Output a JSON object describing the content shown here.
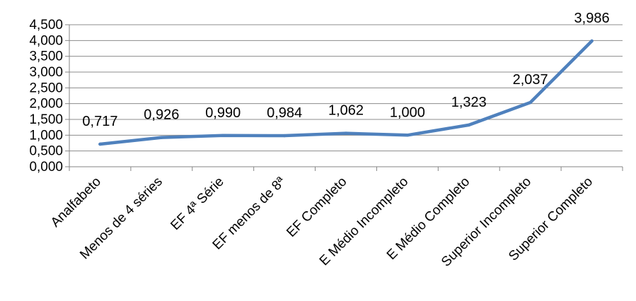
{
  "chart_data": {
    "type": "line",
    "title": "",
    "xlabel": "",
    "ylabel": "",
    "categories": [
      "Analfabeto",
      "Menos de 4 séries",
      "EF 4ª Série",
      "EF menos de 8ª",
      "EF Completo",
      "E Médio Incompleto",
      "E Médio Completo",
      "Superior Incompleto",
      "Superior Completo"
    ],
    "series": [
      {
        "values": [
          0.717,
          0.926,
          0.99,
          0.984,
          1.062,
          1.0,
          1.323,
          2.037,
          3.986
        ],
        "color": "#4f81bd"
      }
    ],
    "data_labels": [
      "0,717",
      "0,926",
      "0,990",
      "0,984",
      "1,062",
      "1,000",
      "1,323",
      "2,037",
      "3,986"
    ],
    "ylim": [
      0,
      4.5
    ],
    "y_ticks": [
      0,
      0.5,
      1,
      1.5,
      2,
      2.5,
      3,
      3.5,
      4,
      4.5
    ],
    "y_tick_labels": [
      "0,000",
      "0,500",
      "1,000",
      "1,500",
      "2,000",
      "2,500",
      "3,000",
      "3,500",
      "4,000",
      "4,500"
    ],
    "grid": true,
    "legend": "none"
  }
}
